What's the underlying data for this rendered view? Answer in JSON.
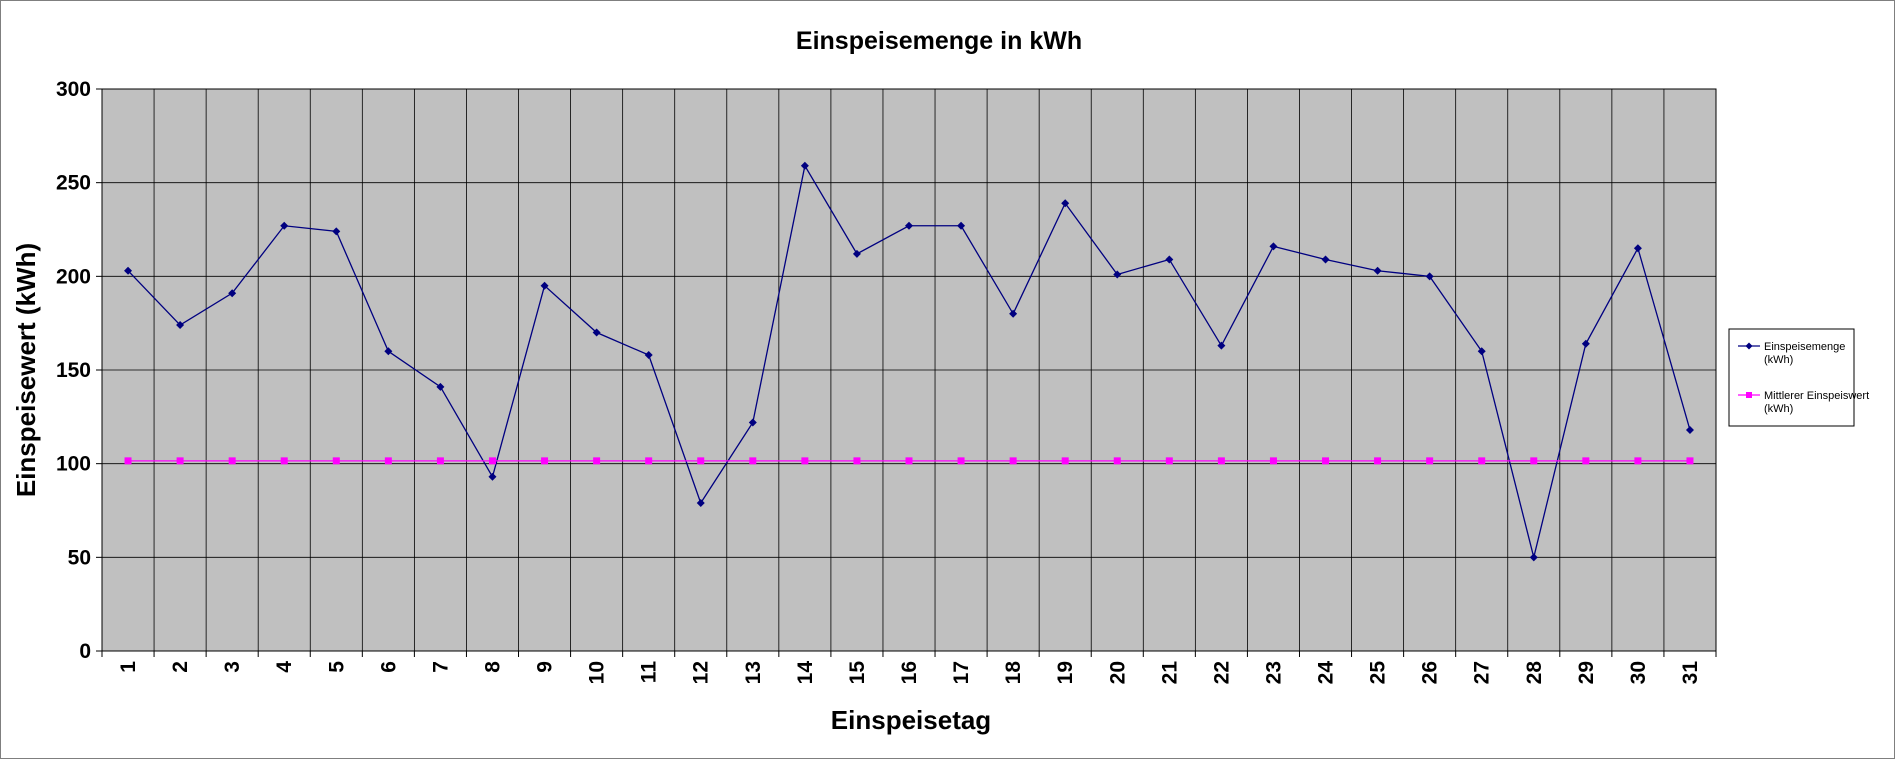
{
  "chart_data": {
    "type": "line",
    "title": "Einspeisemenge in kWh",
    "xlabel": "Einspeisetag",
    "ylabel": "Einspeisewert  (kWh)",
    "categories": [
      "1",
      "2",
      "3",
      "4",
      "5",
      "6",
      "7",
      "8",
      "9",
      "10",
      "11",
      "12",
      "13",
      "14",
      "15",
      "16",
      "17",
      "18",
      "19",
      "20",
      "21",
      "22",
      "23",
      "24",
      "25",
      "26",
      "27",
      "28",
      "29",
      "30",
      "31"
    ],
    "ylim": [
      0,
      300
    ],
    "yticks": [
      "0",
      "50",
      "100",
      "150",
      "200",
      "250",
      "300"
    ],
    "grid": true,
    "legend_position": "right",
    "series": [
      {
        "name_lines": [
          "Einspeisemenge",
          "(kWh)"
        ],
        "color": "#000080",
        "marker": "diamond",
        "values": [
          203,
          174,
          191,
          227,
          224,
          160,
          141,
          93,
          195,
          170,
          158,
          79,
          122,
          259,
          212,
          227,
          227,
          180,
          239,
          201,
          209,
          163,
          216,
          209,
          203,
          200,
          160,
          50,
          164,
          215,
          118
        ]
      },
      {
        "name_lines": [
          "Mittlerer Einspeiswert",
          "(kWh)"
        ],
        "color": "#ff00ff",
        "marker": "square",
        "values": [
          101.5,
          101.5,
          101.5,
          101.5,
          101.5,
          101.5,
          101.5,
          101.5,
          101.5,
          101.5,
          101.5,
          101.5,
          101.5,
          101.5,
          101.5,
          101.5,
          101.5,
          101.5,
          101.5,
          101.5,
          101.5,
          101.5,
          101.5,
          101.5,
          101.5,
          101.5,
          101.5,
          101.5,
          101.5,
          101.5,
          101.5
        ]
      }
    ],
    "colors": {
      "plot_background": "#c0c0c0",
      "gridline": "#000000"
    }
  }
}
